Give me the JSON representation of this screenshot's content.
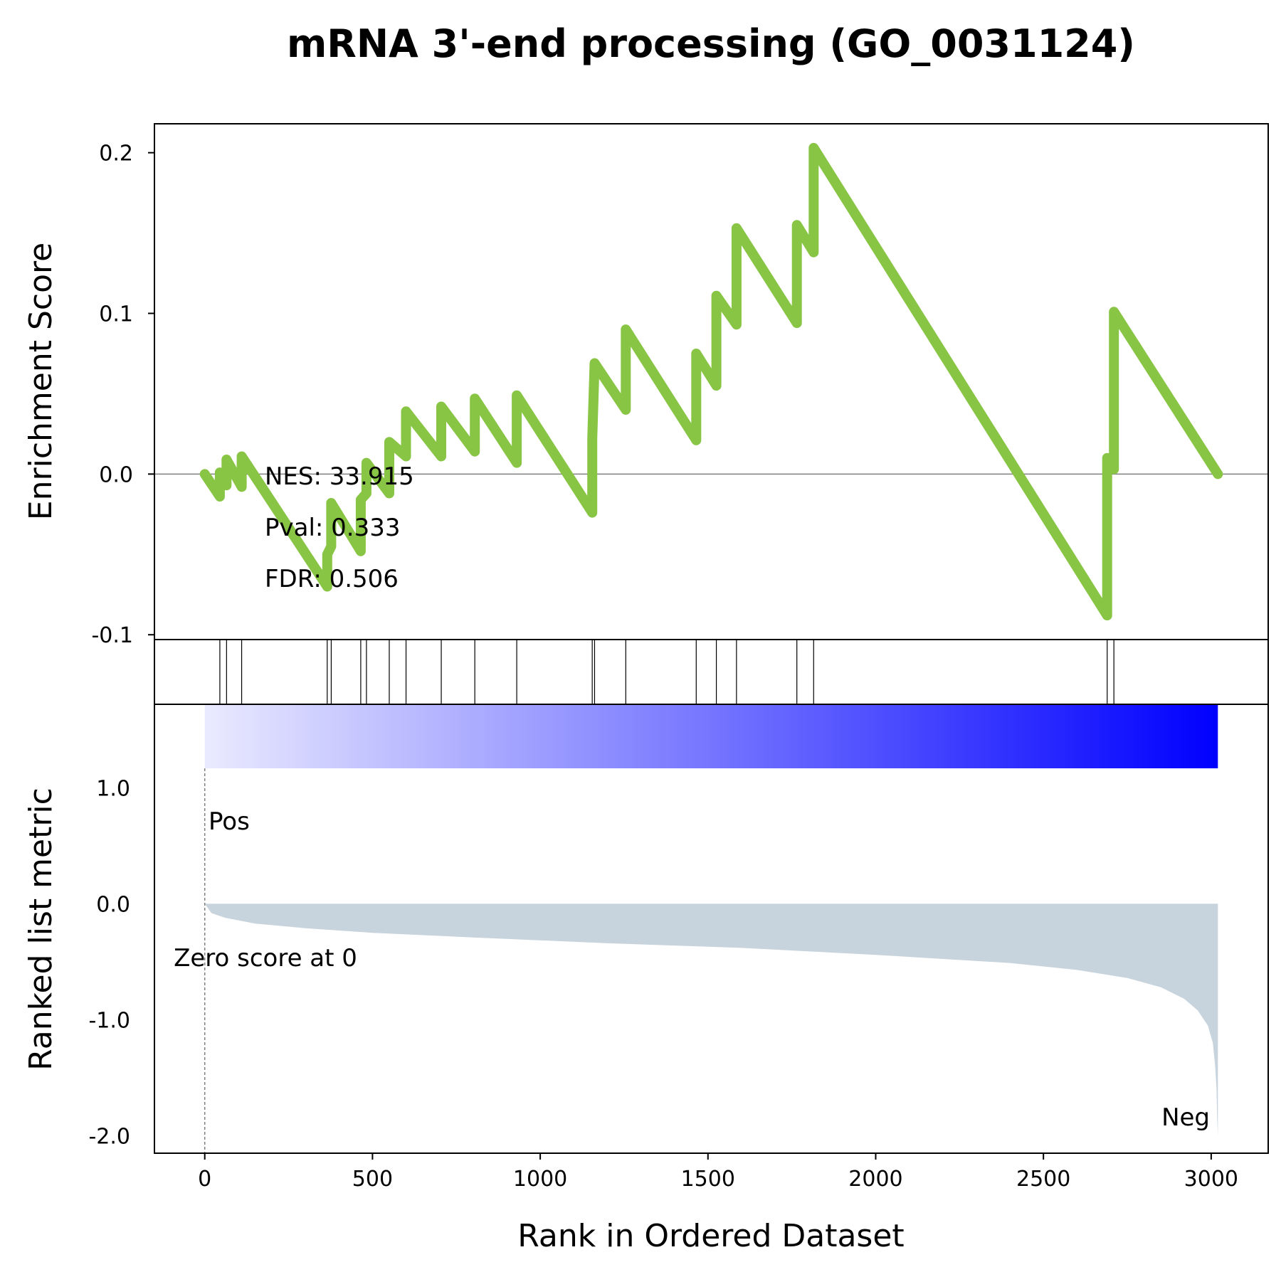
{
  "chart_data": {
    "type": "line",
    "title": "mRNA 3'-end processing (GO_0031124)",
    "xlabel": "Rank in Ordered Dataset",
    "xlim": [
      -150,
      3170
    ],
    "x_ticks": [
      {
        "value": 0,
        "label": "0"
      },
      {
        "value": 500,
        "label": "500"
      },
      {
        "value": 1000,
        "label": "1000"
      },
      {
        "value": 1500,
        "label": "1500"
      },
      {
        "value": 2000,
        "label": "2000"
      },
      {
        "value": 2500,
        "label": "2500"
      },
      {
        "value": 3000,
        "label": "3000"
      }
    ],
    "enrichment": {
      "ylabel": "Enrichment Score",
      "ylim": [
        -0.103,
        0.218
      ],
      "y_ticks": [
        {
          "value": -0.1,
          "label": "-0.1"
        },
        {
          "value": 0.0,
          "label": "0.0"
        },
        {
          "value": 0.1,
          "label": "0.1"
        },
        {
          "value": 0.2,
          "label": "0.2"
        }
      ],
      "line_color": "#88c544",
      "x": [
        0,
        45,
        45,
        65,
        65,
        110,
        110,
        365,
        365,
        377,
        377,
        465,
        465,
        482,
        482,
        550,
        550,
        600,
        600,
        705,
        705,
        805,
        805,
        930,
        930,
        1155,
        1155,
        1162,
        1162,
        1255,
        1255,
        1465,
        1465,
        1525,
        1525,
        1585,
        1585,
        1765,
        1765,
        1815,
        1815,
        2690,
        2690,
        2710,
        2710,
        3020
      ],
      "y": [
        0.0,
        -0.014,
        0.001,
        -0.007,
        0.009,
        -0.008,
        0.011,
        -0.07,
        -0.05,
        -0.045,
        -0.018,
        -0.048,
        -0.016,
        -0.012,
        0.007,
        -0.012,
        0.02,
        0.011,
        0.039,
        0.011,
        0.042,
        0.014,
        0.047,
        0.007,
        0.049,
        -0.024,
        0.022,
        0.069,
        0.069,
        0.04,
        0.09,
        0.021,
        0.075,
        0.055,
        0.111,
        0.093,
        0.153,
        0.094,
        0.155,
        0.138,
        0.203,
        -0.088,
        0.01,
        0.003,
        0.101,
        0.0
      ],
      "annotations": [
        {
          "label": "NES: 33.915"
        },
        {
          "label": "Pval: 0.333"
        },
        {
          "label": "FDR: 0.506"
        }
      ]
    },
    "hits": {
      "positions": [
        45,
        65,
        110,
        365,
        377,
        465,
        482,
        550,
        600,
        705,
        805,
        930,
        1155,
        1162,
        1255,
        1465,
        1525,
        1585,
        1765,
        1815,
        2690,
        2710
      ]
    },
    "ranked_metric": {
      "ylabel": "Ranked list metric",
      "ylim": [
        -2.15,
        1.72
      ],
      "y_ticks": [
        {
          "value": -2.0,
          "label": "-2.0"
        },
        {
          "value": -1.0,
          "label": "-1.0"
        },
        {
          "value": 0.0,
          "label": "0.0"
        },
        {
          "value": 1.0,
          "label": "1.0"
        }
      ],
      "fill_color": "#c8d4dd",
      "colorbar": {
        "from": "#eaeaff",
        "to": "#0000ff"
      },
      "x": [
        0,
        20,
        60,
        150,
        300,
        500,
        800,
        1200,
        1600,
        2000,
        2400,
        2600,
        2750,
        2850,
        2920,
        2960,
        2990,
        3005,
        3012,
        3016,
        3018,
        3020
      ],
      "y": [
        0.0,
        -0.08,
        -0.12,
        -0.17,
        -0.21,
        -0.25,
        -0.29,
        -0.34,
        -0.38,
        -0.44,
        -0.51,
        -0.57,
        -0.64,
        -0.72,
        -0.82,
        -0.92,
        -1.05,
        -1.2,
        -1.4,
        -1.6,
        -1.85,
        -2.0
      ],
      "zero_label": "Zero score at 0",
      "pos_label": "Pos",
      "neg_label": "Neg",
      "pos_color": "#ff0000",
      "neg_color": "#0000ff"
    }
  }
}
